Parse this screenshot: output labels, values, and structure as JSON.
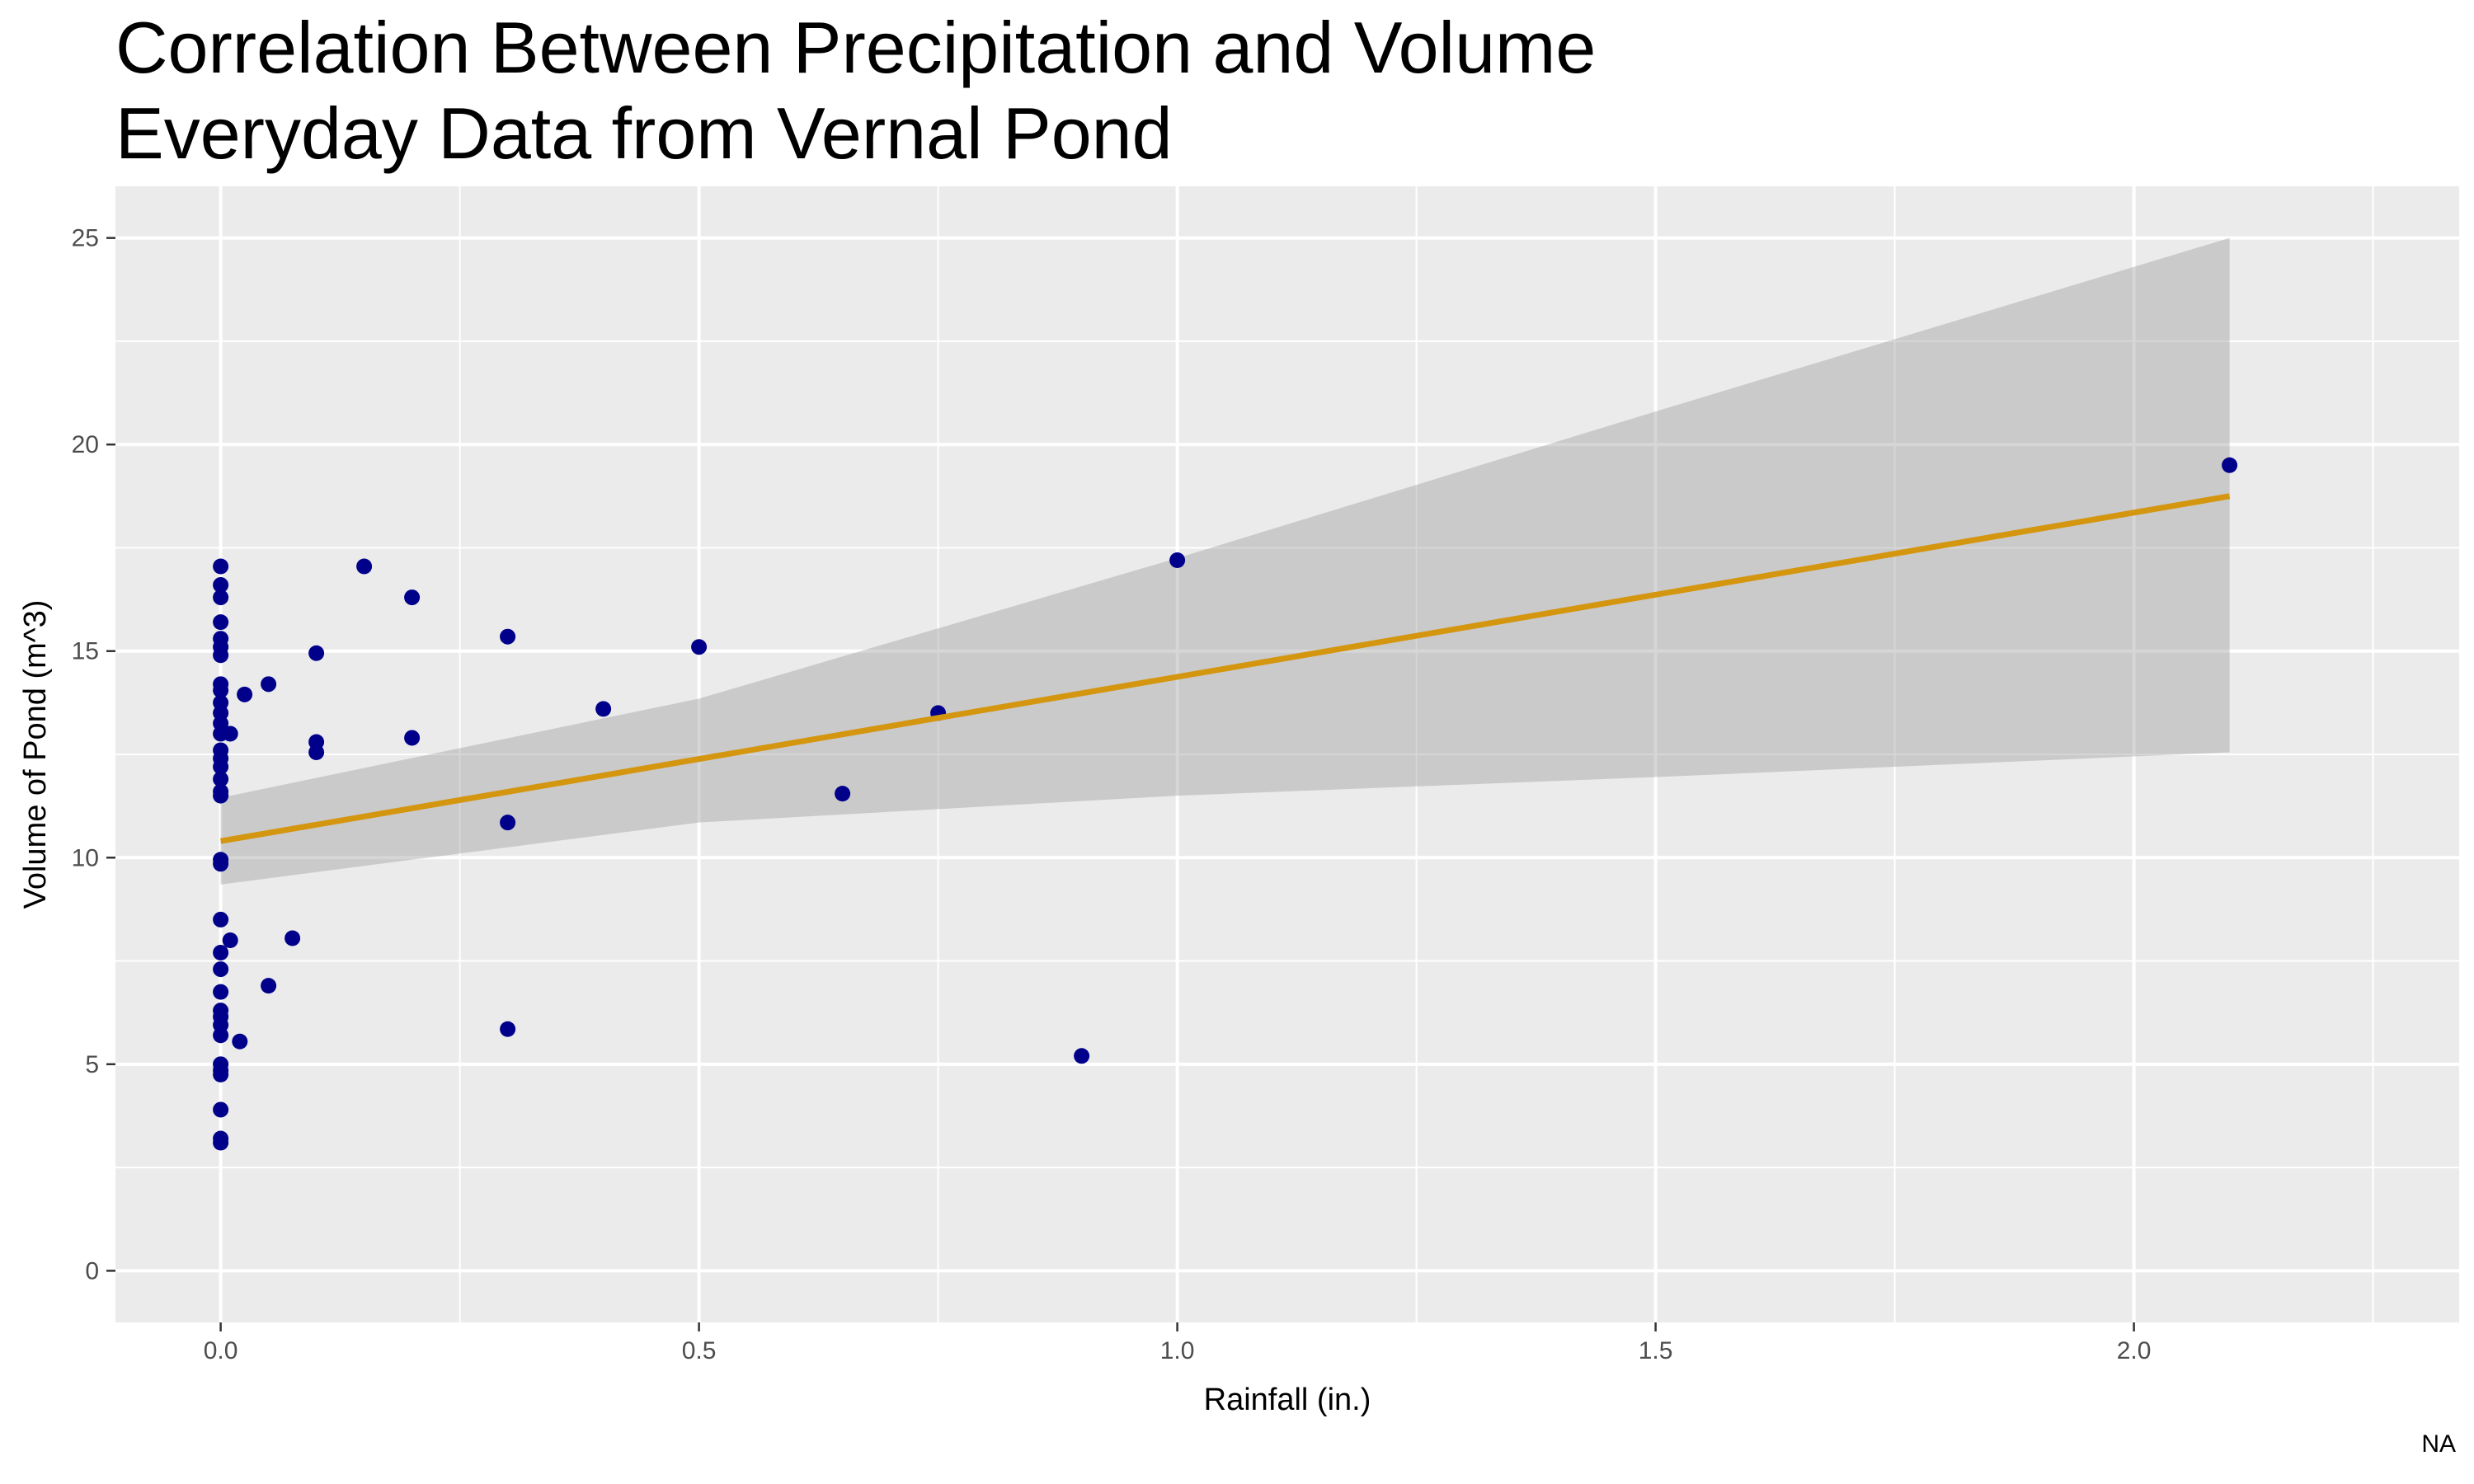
{
  "chart_data": {
    "type": "scatter",
    "title": "Correlation Between Precipitation and Volume",
    "subtitle": "Everyday Data from Vernal Pond",
    "xlabel": "Rainfall (in.)",
    "ylabel": "Volume of Pond (m^3)",
    "caption": "NA",
    "xlim": [
      -0.11,
      2.34
    ],
    "ylim": [
      -1.25,
      26.25
    ],
    "x_ticks": [
      0.0,
      0.5,
      1.0,
      1.5,
      2.0
    ],
    "x_tick_labels": [
      "0.0",
      "0.5",
      "1.0",
      "1.5",
      "2.0"
    ],
    "y_ticks": [
      0,
      5,
      10,
      15,
      20,
      25
    ],
    "y_tick_labels": [
      "0",
      "5",
      "10",
      "15",
      "20",
      "25"
    ],
    "grid": true,
    "legend": "none",
    "points": [
      {
        "x": 0,
        "y": 17.05
      },
      {
        "x": 0,
        "y": 16.6
      },
      {
        "x": 0,
        "y": 16.3
      },
      {
        "x": 0,
        "y": 15.7
      },
      {
        "x": 0,
        "y": 15.3
      },
      {
        "x": 0,
        "y": 15.1
      },
      {
        "x": 0,
        "y": 14.9
      },
      {
        "x": 0,
        "y": 14.2
      },
      {
        "x": 0,
        "y": 14.05
      },
      {
        "x": 0,
        "y": 13.75
      },
      {
        "x": 0,
        "y": 13.5
      },
      {
        "x": 0,
        "y": 13.25
      },
      {
        "x": 0,
        "y": 13.0
      },
      {
        "x": 0,
        "y": 12.6
      },
      {
        "x": 0,
        "y": 12.4
      },
      {
        "x": 0,
        "y": 12.2
      },
      {
        "x": 0,
        "y": 11.9
      },
      {
        "x": 0,
        "y": 11.6
      },
      {
        "x": 0,
        "y": 11.5
      },
      {
        "x": 0,
        "y": 9.95
      },
      {
        "x": 0,
        "y": 9.85
      },
      {
        "x": 0,
        "y": 8.5
      },
      {
        "x": 0,
        "y": 7.7
      },
      {
        "x": 0,
        "y": 7.3
      },
      {
        "x": 0,
        "y": 6.75
      },
      {
        "x": 0,
        "y": 6.3
      },
      {
        "x": 0,
        "y": 6.15
      },
      {
        "x": 0,
        "y": 5.95
      },
      {
        "x": 0,
        "y": 5.7
      },
      {
        "x": 0,
        "y": 5.0
      },
      {
        "x": 0,
        "y": 4.85
      },
      {
        "x": 0,
        "y": 4.75
      },
      {
        "x": 0,
        "y": 3.9
      },
      {
        "x": 0,
        "y": 3.2
      },
      {
        "x": 0,
        "y": 3.1
      },
      {
        "x": 0.01,
        "y": 13.0
      },
      {
        "x": 0.01,
        "y": 8.0
      },
      {
        "x": 0.02,
        "y": 5.55
      },
      {
        "x": 0.025,
        "y": 13.95
      },
      {
        "x": 0.05,
        "y": 14.2
      },
      {
        "x": 0.05,
        "y": 6.9
      },
      {
        "x": 0.075,
        "y": 8.05
      },
      {
        "x": 0.1,
        "y": 14.95
      },
      {
        "x": 0.1,
        "y": 12.8
      },
      {
        "x": 0.1,
        "y": 12.55
      },
      {
        "x": 0.15,
        "y": 17.05
      },
      {
        "x": 0.2,
        "y": 16.3
      },
      {
        "x": 0.2,
        "y": 12.9
      },
      {
        "x": 0.3,
        "y": 15.35
      },
      {
        "x": 0.3,
        "y": 10.85
      },
      {
        "x": 0.3,
        "y": 5.85
      },
      {
        "x": 0.4,
        "y": 13.6
      },
      {
        "x": 0.5,
        "y": 15.1
      },
      {
        "x": 0.65,
        "y": 11.55
      },
      {
        "x": 0.75,
        "y": 13.5
      },
      {
        "x": 0.9,
        "y": 5.2
      },
      {
        "x": 1.0,
        "y": 17.2
      },
      {
        "x": 2.1,
        "y": 19.5
      }
    ],
    "fit_line": {
      "method": "lm",
      "x": [
        0,
        2.1
      ],
      "y": [
        10.4,
        18.75
      ]
    },
    "confidence_band": {
      "x": [
        0,
        0.5,
        1.0,
        1.5,
        2.1
      ],
      "upper": [
        11.45,
        13.85,
        17.25,
        20.8,
        25.0
      ],
      "lower": [
        9.35,
        10.85,
        11.5,
        11.95,
        12.55
      ]
    },
    "colors": {
      "points": "#00008b",
      "fit_line": "#d4950f",
      "band": "#c8c8c8",
      "panel": "#ebebeb",
      "grid": "#ffffff"
    }
  }
}
